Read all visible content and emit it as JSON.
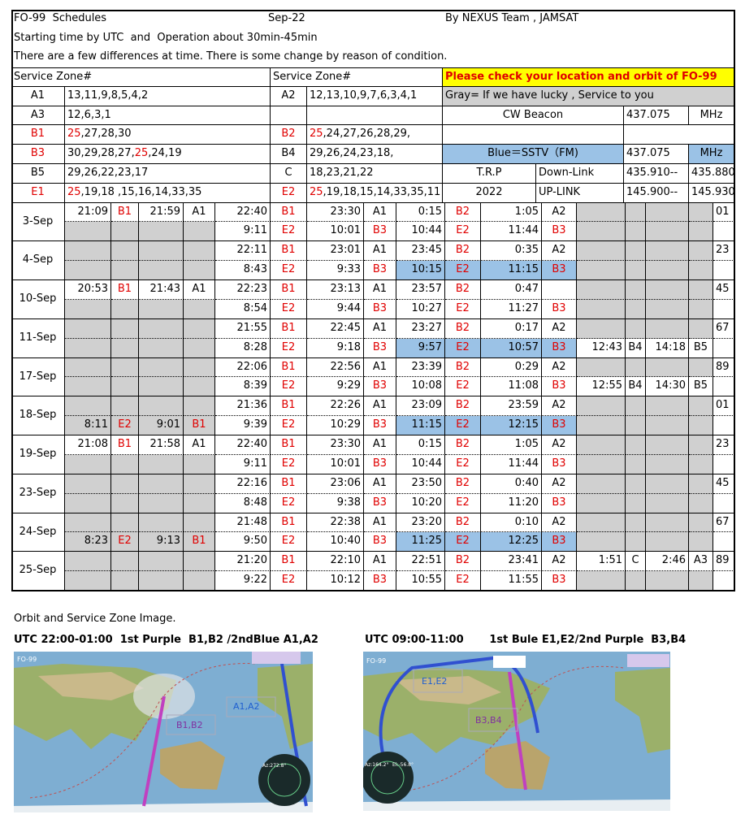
{
  "header": {
    "title": "FO-99  Schedules",
    "month": "Sep-22",
    "team": "By NEXUS Team , JAMSAT",
    "note1": "Starting time by UTC  and  Operation about 30min-45min",
    "note2": "There are a few differences at time. There is some change by reason of condition."
  },
  "zone_colors": {
    "B1": "#e00000",
    "B2": "#e00000",
    "B3": "#e00000",
    "E1": "#e00000",
    "E2": "#e00000"
  },
  "zones": {
    "headings": [
      "Service  Zone#",
      "Service  Zone#"
    ],
    "rows": [
      [
        {
          "code": "A1",
          "parts": [
            {
              "text": "13,11,9,8,5,4,2"
            }
          ]
        },
        {
          "code": "A2",
          "parts": [
            {
              "text": "12,13,10,9,7,6,3,4,1"
            }
          ]
        }
      ],
      [
        {
          "code": "A3",
          "parts": [
            {
              "text": "12,6,3,1"
            }
          ]
        },
        null
      ],
      [
        {
          "code": "B1",
          "parts": [
            {
              "text": "25",
              "color": "#e00000"
            },
            {
              "text": ",27,28,30"
            }
          ]
        },
        {
          "code": "B2",
          "parts": [
            {
              "text": "25",
              "color": "#e00000"
            },
            {
              "text": ",24,27,26,28,29,"
            }
          ]
        }
      ],
      [
        {
          "code": "B3",
          "parts": [
            {
              "text": "30,29,28,27,"
            },
            {
              "text": "25",
              "color": "#e00000"
            },
            {
              "text": ",24,19"
            }
          ]
        },
        {
          "code": "B4",
          "parts": [
            {
              "text": "29,26,24,23,18,"
            }
          ]
        }
      ],
      [
        {
          "code": "B5",
          "parts": [
            {
              "text": "29,26,22,23,17"
            }
          ]
        },
        {
          "code": "C",
          "parts": [
            {
              "text": "18,23,21,22"
            }
          ]
        }
      ],
      [
        {
          "code": "E1",
          "parts": [
            {
              "text": "25",
              "color": "#e00000"
            },
            {
              "text": ",19,18 ,15,16,14,33,35"
            }
          ]
        },
        {
          "code": "E2",
          "parts": [
            {
              "text": "25",
              "color": "#e00000"
            },
            {
              "text": ",19,18,15,14,33,35,11"
            }
          ]
        }
      ]
    ]
  },
  "info": {
    "rows": [
      [
        {
          "text": "Please check your location and orbit of FO-99",
          "bg": "#ffff00",
          "color": "#e00000"
        }
      ],
      [
        {
          "text": "Gray= If we have  lucky , Service to you",
          "bg": "#d0d0d0"
        }
      ],
      [
        {
          "text": "CW Beacon"
        },
        {
          "text": "437.075"
        },
        {
          "text": "MHz"
        }
      ],
      [
        null,
        null
      ],
      [
        {
          "text": "Blue＝SSTV（FM)",
          "bg": "#9bc2e6"
        },
        {
          "text": "437.075"
        },
        {
          "text": "MHz",
          "bg": "#9bc2e6"
        }
      ],
      [
        {
          "text": "T.R.P"
        },
        {
          "text": "Down-Link"
        },
        {
          "text": "435.910--"
        },
        {
          "text": "435.880"
        }
      ],
      [
        {
          "text": "2022"
        },
        {
          "text": "UP-LINK"
        },
        {
          "text": "145.900--"
        },
        {
          "text": "145.930"
        }
      ]
    ]
  },
  "schedule": [
    {
      "date": "3-Sep",
      "num": "01",
      "rows": [
        {
          "cells": [
            [
              "21:09",
              "B1"
            ],
            [
              "21:59",
              "A1"
            ],
            [
              "22:40",
              "B1"
            ],
            [
              "23:30",
              "A1"
            ],
            [
              "0:15",
              "B2"
            ],
            [
              "1:05",
              "A2"
            ],
            null,
            null
          ],
          "shade": [
            null,
            null,
            null,
            null,
            null,
            null,
            "#d0d0d0",
            "#d0d0d0"
          ]
        },
        {
          "cells": [
            null,
            null,
            [
              "9:11",
              "E2"
            ],
            [
              "10:01",
              "B3"
            ],
            [
              "10:44",
              "E2"
            ],
            [
              "11:44",
              "B3"
            ],
            null,
            null
          ],
          "shade": [
            "#d0d0d0",
            "#d0d0d0",
            null,
            null,
            null,
            null,
            "#d0d0d0",
            "#d0d0d0"
          ]
        }
      ]
    },
    {
      "date": "4-Sep",
      "num": "23",
      "rows": [
        {
          "cells": [
            null,
            null,
            [
              "22:11",
              "B1"
            ],
            [
              "23:01",
              "A1"
            ],
            [
              "23:45",
              "B2"
            ],
            [
              "0:35",
              "A2"
            ],
            null,
            null
          ],
          "shade": [
            "#d0d0d0",
            "#d0d0d0",
            null,
            null,
            null,
            null,
            "#d0d0d0",
            "#d0d0d0"
          ]
        },
        {
          "cells": [
            null,
            null,
            [
              "8:43",
              "E2"
            ],
            [
              "9:33",
              "B3"
            ],
            [
              "10:15",
              "E2"
            ],
            [
              "11:15",
              "B3"
            ],
            null,
            null
          ],
          "shade": [
            "#d0d0d0",
            "#d0d0d0",
            null,
            null,
            "#9bc2e6",
            "#9bc2e6",
            "#d0d0d0",
            "#d0d0d0"
          ]
        }
      ]
    },
    {
      "date": "10-Sep",
      "num": "45",
      "rows": [
        {
          "cells": [
            [
              "20:53",
              "B1"
            ],
            [
              "21:43",
              "A1"
            ],
            [
              "22:23",
              "B1"
            ],
            [
              "23:13",
              "A1"
            ],
            [
              "23:57",
              "B2"
            ],
            [
              "0:47",
              null
            ],
            null,
            null
          ],
          "shade": [
            null,
            null,
            null,
            null,
            null,
            null,
            "#d0d0d0",
            "#d0d0d0"
          ]
        },
        {
          "cells": [
            null,
            null,
            [
              "8:54",
              "E2"
            ],
            [
              "9:44",
              "B3"
            ],
            [
              "10:27",
              "E2"
            ],
            [
              "11:27",
              "B3"
            ],
            null,
            null
          ],
          "shade": [
            "#d0d0d0",
            "#d0d0d0",
            null,
            null,
            null,
            null,
            "#d0d0d0",
            "#d0d0d0"
          ]
        }
      ]
    },
    {
      "date": "11-Sep",
      "num": "67",
      "rows": [
        {
          "cells": [
            null,
            null,
            [
              "21:55",
              "B1"
            ],
            [
              "22:45",
              "A1"
            ],
            [
              "23:27",
              "B2"
            ],
            [
              "0:17",
              "A2"
            ],
            null,
            null
          ],
          "shade": [
            "#d0d0d0",
            "#d0d0d0",
            null,
            null,
            null,
            null,
            "#d0d0d0",
            "#d0d0d0"
          ]
        },
        {
          "cells": [
            null,
            null,
            [
              "8:28",
              "E2"
            ],
            [
              "9:18",
              "B3"
            ],
            [
              "9:57",
              "E2"
            ],
            [
              "10:57",
              "B3"
            ],
            [
              "12:43",
              "B4"
            ],
            [
              "14:18",
              "B5"
            ]
          ],
          "shade": [
            "#d0d0d0",
            "#d0d0d0",
            null,
            null,
            "#9bc2e6",
            "#9bc2e6",
            null,
            null
          ]
        }
      ]
    },
    {
      "date": "17-Sep",
      "num": "89",
      "rows": [
        {
          "cells": [
            null,
            null,
            [
              "22:06",
              "B1"
            ],
            [
              "22:56",
              "A1"
            ],
            [
              "23:39",
              "B2"
            ],
            [
              "0:29",
              "A2"
            ],
            null,
            null
          ],
          "shade": [
            "#d0d0d0",
            "#d0d0d0",
            null,
            null,
            null,
            null,
            "#d0d0d0",
            "#d0d0d0"
          ]
        },
        {
          "cells": [
            null,
            null,
            [
              "8:39",
              "E2"
            ],
            [
              "9:29",
              "B3"
            ],
            [
              "10:08",
              "E2"
            ],
            [
              "11:08",
              "B3"
            ],
            [
              "12:55",
              "B4"
            ],
            [
              "14:30",
              "B5"
            ]
          ],
          "shade": [
            "#d0d0d0",
            "#d0d0d0",
            null,
            null,
            null,
            null,
            null,
            null
          ]
        }
      ]
    },
    {
      "date": "18-Sep",
      "num": "01",
      "rows": [
        {
          "cells": [
            null,
            null,
            [
              "21:36",
              "B1"
            ],
            [
              "22:26",
              "A1"
            ],
            [
              "23:09",
              "B2"
            ],
            [
              "23:59",
              "A2"
            ],
            null,
            null
          ],
          "shade": [
            "#d0d0d0",
            "#d0d0d0",
            null,
            null,
            null,
            null,
            "#d0d0d0",
            "#d0d0d0"
          ]
        },
        {
          "cells": [
            [
              "8:11",
              "E2"
            ],
            [
              "9:01",
              "B1"
            ],
            [
              "9:39",
              "E2"
            ],
            [
              "10:29",
              "B3"
            ],
            [
              "11:15",
              "E2"
            ],
            [
              "12:15",
              "B3"
            ],
            null,
            null
          ],
          "shade": [
            "#d0d0d0",
            "#d0d0d0",
            null,
            null,
            "#9bc2e6",
            "#9bc2e6",
            "#d0d0d0",
            "#d0d0d0"
          ]
        }
      ]
    },
    {
      "date": "19-Sep",
      "num": "23",
      "rows": [
        {
          "cells": [
            [
              "21:08",
              "B1"
            ],
            [
              "21:58",
              "A1"
            ],
            [
              "22:40",
              "B1"
            ],
            [
              "23:30",
              "A1"
            ],
            [
              "0:15",
              "B2"
            ],
            [
              "1:05",
              "A2"
            ],
            null,
            null
          ],
          "shade": [
            null,
            null,
            null,
            null,
            null,
            null,
            "#d0d0d0",
            "#d0d0d0"
          ]
        },
        {
          "cells": [
            null,
            null,
            [
              "9:11",
              "E2"
            ],
            [
              "10:01",
              "B3"
            ],
            [
              "10:44",
              "E2"
            ],
            [
              "11:44",
              "B3"
            ],
            null,
            null
          ],
          "shade": [
            "#d0d0d0",
            "#d0d0d0",
            null,
            null,
            null,
            null,
            "#d0d0d0",
            "#d0d0d0"
          ]
        }
      ]
    },
    {
      "date": "23-Sep",
      "num": "45",
      "rows": [
        {
          "cells": [
            null,
            null,
            [
              "22:16",
              "B1"
            ],
            [
              "23:06",
              "A1"
            ],
            [
              "23:50",
              "B2"
            ],
            [
              "0:40",
              "A2"
            ],
            null,
            null
          ],
          "shade": [
            "#d0d0d0",
            "#d0d0d0",
            null,
            null,
            null,
            null,
            "#d0d0d0",
            "#d0d0d0"
          ]
        },
        {
          "cells": [
            null,
            null,
            [
              "8:48",
              "E2"
            ],
            [
              "9:38",
              "B3"
            ],
            [
              "10:20",
              "E2"
            ],
            [
              "11:20",
              "B3"
            ],
            null,
            null
          ],
          "shade": [
            "#d0d0d0",
            "#d0d0d0",
            null,
            null,
            null,
            null,
            "#d0d0d0",
            "#d0d0d0"
          ]
        }
      ]
    },
    {
      "date": "24-Sep",
      "num": "67",
      "rows": [
        {
          "cells": [
            null,
            null,
            [
              "21:48",
              "B1"
            ],
            [
              "22:38",
              "A1"
            ],
            [
              "23:20",
              "B2"
            ],
            [
              "0:10",
              "A2"
            ],
            null,
            null
          ],
          "shade": [
            "#d0d0d0",
            "#d0d0d0",
            null,
            null,
            null,
            null,
            "#d0d0d0",
            "#d0d0d0"
          ]
        },
        {
          "cells": [
            [
              "8:23",
              "E2"
            ],
            [
              "9:13",
              "B1"
            ],
            [
              "9:50",
              "E2"
            ],
            [
              "10:40",
              "B3"
            ],
            [
              "11:25",
              "E2"
            ],
            [
              "12:25",
              "B3"
            ],
            null,
            null
          ],
          "shade": [
            "#d0d0d0",
            "#d0d0d0",
            null,
            null,
            "#9bc2e6",
            "#9bc2e6",
            "#d0d0d0",
            "#d0d0d0"
          ]
        }
      ]
    },
    {
      "date": "25-Sep",
      "num": "89",
      "rows": [
        {
          "cells": [
            null,
            null,
            [
              "21:20",
              "B1"
            ],
            [
              "22:10",
              "A1"
            ],
            [
              "22:51",
              "B2"
            ],
            [
              "23:41",
              "A2"
            ],
            [
              "1:51",
              "C"
            ],
            [
              "2:46",
              "A3"
            ]
          ],
          "shade": [
            "#d0d0d0",
            "#d0d0d0",
            null,
            null,
            null,
            null,
            null,
            null
          ]
        },
        {
          "cells": [
            null,
            null,
            [
              "9:22",
              "E2"
            ],
            [
              "10:12",
              "B3"
            ],
            [
              "10:55",
              "E2"
            ],
            [
              "11:55",
              "B3"
            ],
            null,
            null
          ],
          "shade": [
            "#d0d0d0",
            "#d0d0d0",
            null,
            null,
            null,
            null,
            "#d0d0d0",
            "#d0d0d0"
          ]
        }
      ]
    }
  ],
  "maps": {
    "heading": "Orbit and Service Zone Image.",
    "panels": [
      {
        "caption": "UTC 22:00-01:00  1st Purple  B1,B2 /2ndBlue A1,A2",
        "labels": [
          "FO-99",
          "B1,B2",
          "A1,A2",
          "Az:272.8°"
        ]
      },
      {
        "caption": "UTC 09:00-11:00       1st Bule E1,E2/2nd Purple  B3,B4",
        "labels": [
          "FO-99",
          "E1,E2",
          "B3,B4",
          "Az:164.2°",
          "El:-56.8°"
        ]
      }
    ]
  }
}
